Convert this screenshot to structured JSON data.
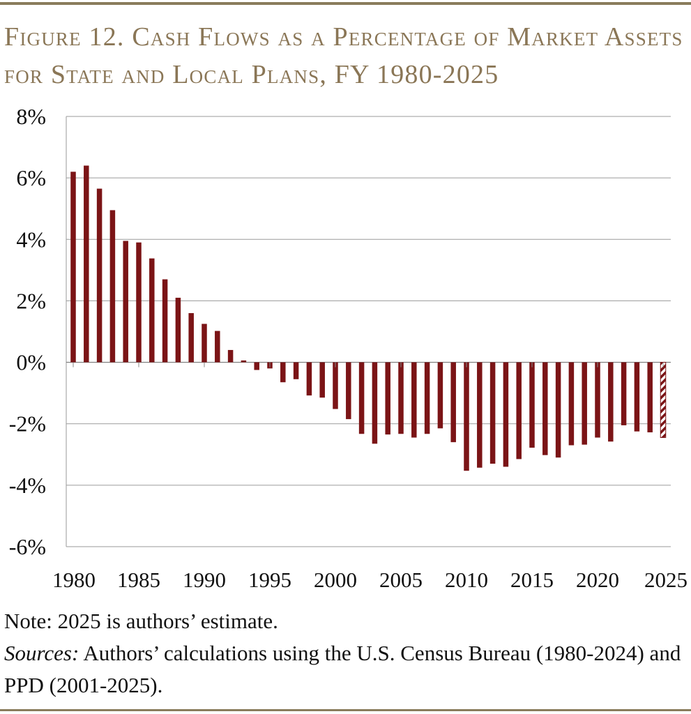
{
  "title": "Figure 12. Cash Flows as a Percentage of Market Assets for State and Local Plans, FY 1980-2025",
  "note": "Note: 2025 is authors’ estimate.",
  "sources_label": "Sources:",
  "sources_text": " Authors’ calculations using the U.S. Census Bureau (1980-2024) and PPD (2001-2025).",
  "colors": {
    "bar": "#7b1416",
    "grid": "#9a9a9a",
    "rule": "#8a7c5c",
    "title": "#8a7656"
  },
  "chart_data": {
    "type": "bar",
    "title": "Figure 12. Cash Flows as a Percentage of Market Assets for State and Local Plans, FY 1980-2025",
    "xlabel": "",
    "ylabel": "",
    "ylim": [
      -6,
      8
    ],
    "yticks": [
      8,
      6,
      4,
      2,
      0,
      -2,
      -4,
      -6
    ],
    "ytick_labels": [
      "8%",
      "6%",
      "4%",
      "2%",
      "0%",
      "-2%",
      "-4%",
      "-6%"
    ],
    "xtick_labels": [
      "1980",
      "1985",
      "1990",
      "1995",
      "2000",
      "2005",
      "2010",
      "2015",
      "2020",
      "2025"
    ],
    "grid": true,
    "estimate_category": "2025",
    "estimate_pattern": "hatched",
    "categories": [
      "1980",
      "1981",
      "1982",
      "1983",
      "1984",
      "1985",
      "1986",
      "1987",
      "1988",
      "1989",
      "1990",
      "1991",
      "1992",
      "1993",
      "1994",
      "1995",
      "1996",
      "1997",
      "1998",
      "1999",
      "2000",
      "2001",
      "2002",
      "2003",
      "2004",
      "2005",
      "2006",
      "2007",
      "2008",
      "2009",
      "2010",
      "2011",
      "2012",
      "2013",
      "2014",
      "2015",
      "2016",
      "2017",
      "2018",
      "2019",
      "2020",
      "2021",
      "2022",
      "2023",
      "2024",
      "2025"
    ],
    "values": [
      6.2,
      6.4,
      5.65,
      4.95,
      3.95,
      3.9,
      3.38,
      2.7,
      2.1,
      1.6,
      1.25,
      1.02,
      0.4,
      0.06,
      -0.25,
      -0.2,
      -0.65,
      -0.55,
      -1.08,
      -1.15,
      -1.52,
      -1.85,
      -2.33,
      -2.65,
      -2.35,
      -2.33,
      -2.45,
      -2.33,
      -2.15,
      -2.6,
      -3.53,
      -3.43,
      -3.3,
      -3.4,
      -3.15,
      -2.78,
      -3.02,
      -3.1,
      -2.7,
      -2.68,
      -2.45,
      -2.58,
      -2.05,
      -2.25,
      -2.28,
      -2.45
    ]
  }
}
